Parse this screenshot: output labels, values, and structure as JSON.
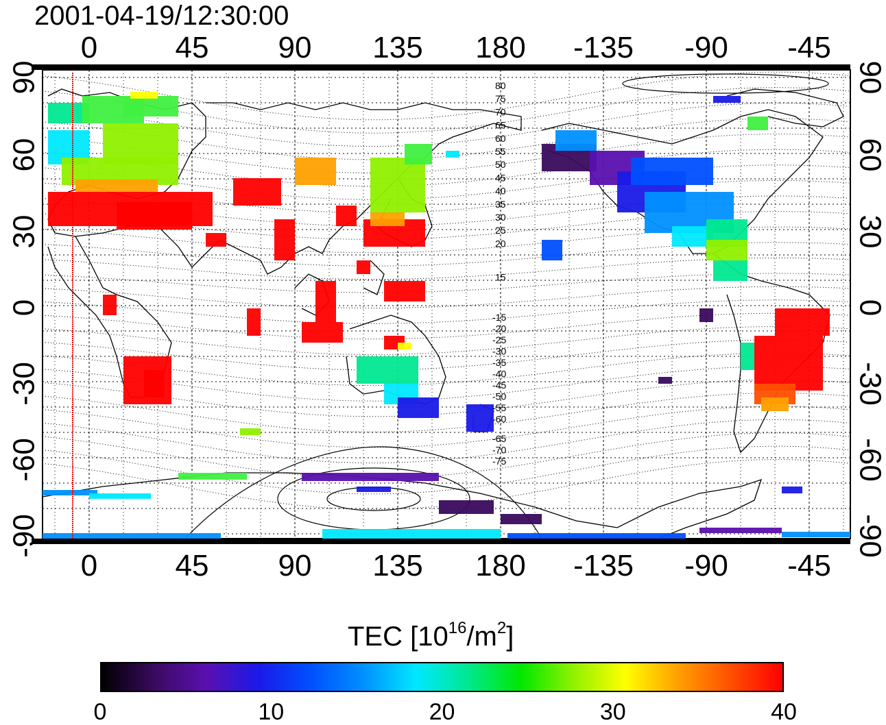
{
  "title": "2001-04-19/12:30:00",
  "map": {
    "top_lon_labels": [
      "0",
      "45",
      "90",
      "135",
      "180",
      "-135",
      "-90",
      "-45"
    ],
    "bottom_lon_labels": [
      "0",
      "45",
      "90",
      "135",
      "180",
      "-135",
      "-90",
      "-45"
    ],
    "left_lat_labels": [
      "90",
      "60",
      "30",
      "0",
      "-30",
      "-60",
      "-90"
    ],
    "right_lat_labels": [
      "90",
      "60",
      "30",
      "0",
      "-30",
      "-60",
      "-90"
    ],
    "mlat_north_labels": [
      "80",
      "75",
      "70",
      "65",
      "60",
      "55",
      "50",
      "45",
      "40",
      "35",
      "30",
      "25",
      "20",
      "15"
    ],
    "mlat_south_labels": [
      "-15",
      "-20",
      "-25",
      "-30",
      "-35",
      "-40",
      "-45",
      "-50",
      "-55",
      "-60",
      "-65",
      "-70",
      "-75"
    ],
    "terminator_line_color": "#ff0000"
  },
  "colorbar": {
    "title_main": "TEC  [10",
    "title_exp1": "16",
    "title_mid": "/m",
    "title_exp2": "2",
    "title_end": "]",
    "tick_labels": [
      "0",
      "10",
      "20",
      "30",
      "40"
    ],
    "range": [
      0,
      40
    ],
    "colors": [
      "#000000",
      "#3a0a5e",
      "#5a10b0",
      "#1a1ae8",
      "#0050ff",
      "#0090ff",
      "#00e8ff",
      "#00e890",
      "#00e800",
      "#90f000",
      "#ffff00",
      "#ffa000",
      "#ff5000",
      "#ff0000"
    ]
  }
}
